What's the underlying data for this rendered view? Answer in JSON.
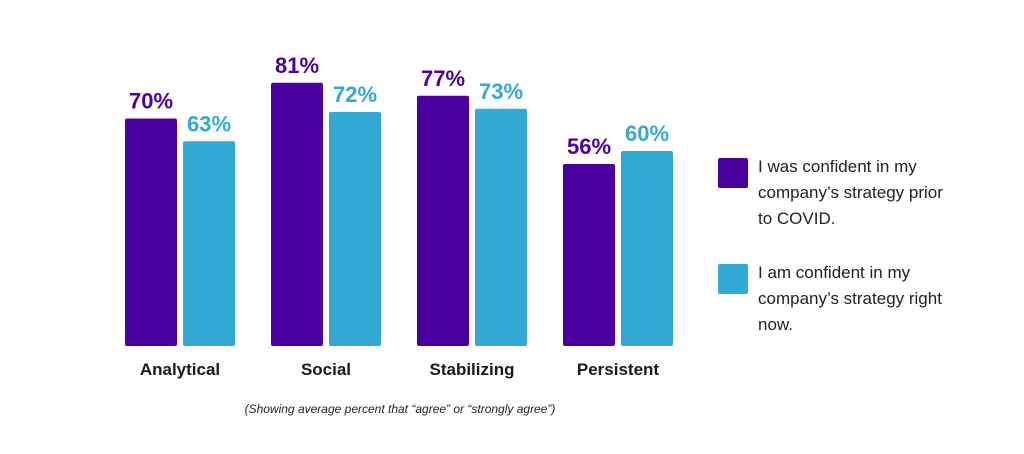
{
  "chart_data": {
    "type": "bar",
    "categories": [
      "Analytical",
      "Social",
      "Stabilizing",
      "Persistent"
    ],
    "series": [
      {
        "name": "I was confident in my company’s strategy prior to COVID.",
        "color": "#4b00a0",
        "values": [
          70,
          81,
          77,
          56
        ],
        "labels": [
          "70%",
          "81%",
          "77%",
          "56%"
        ]
      },
      {
        "name": "I am confident in my company’s strategy right now.",
        "color": "#33a9d4",
        "values": [
          63,
          72,
          73,
          60
        ],
        "labels": [
          "63%",
          "72%",
          "73%",
          "60%"
        ]
      }
    ],
    "ylim": [
      0,
      100
    ],
    "grid": false,
    "legend_position": "right",
    "xlabel": "",
    "ylabel": ""
  },
  "footnote": "(Showing average percent that “agree” or “strongly agree”)"
}
